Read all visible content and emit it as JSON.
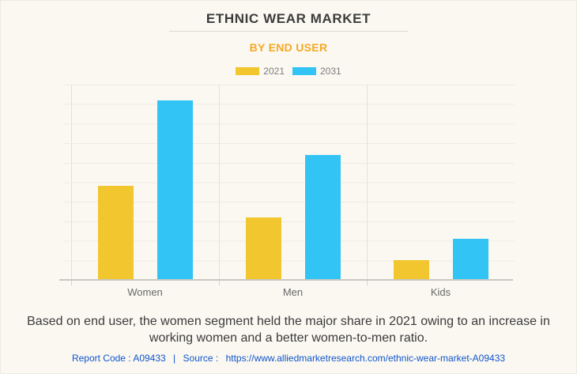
{
  "page": {
    "background": "#faf8f1",
    "title": "ETHNIC WEAR MARKET",
    "subtitle": "BY END USER"
  },
  "chart_data": {
    "type": "bar",
    "title": "ETHNIC WEAR MARKET",
    "subtitle": "BY END USER",
    "categories": [
      "Women",
      "Men",
      "Kids"
    ],
    "series": [
      {
        "name": "2021",
        "color": "#f1c62e",
        "values": [
          48,
          32,
          10
        ]
      },
      {
        "name": "2031",
        "color": "#33c4f6",
        "values": [
          92,
          64,
          21
        ]
      }
    ],
    "xlabel": "",
    "ylabel": "",
    "ylim": [
      0,
      100
    ],
    "y_axis_labels_visible": false,
    "grid": "horizontal, 10 intervals",
    "legend_position": "top center"
  },
  "description": "Based on end user, the women segment held the major share in 2021 owing to an increase in working women and a better women-to-men ratio.",
  "footer": {
    "report_code": "Report Code : A09433",
    "separator": "|",
    "source_label": "Source :",
    "source_url": "https://www.alliedmarketresearch.com/ethnic-wear-market-A09433",
    "link_color": "#1155cc"
  },
  "colors": {
    "accent_orange": "#f7a823",
    "title_text": "#3c3c3c",
    "category_label": "#696969",
    "legend_label": "#7c7c7c",
    "gridline": "#edebe3",
    "baseline": "#c9c7c1"
  }
}
